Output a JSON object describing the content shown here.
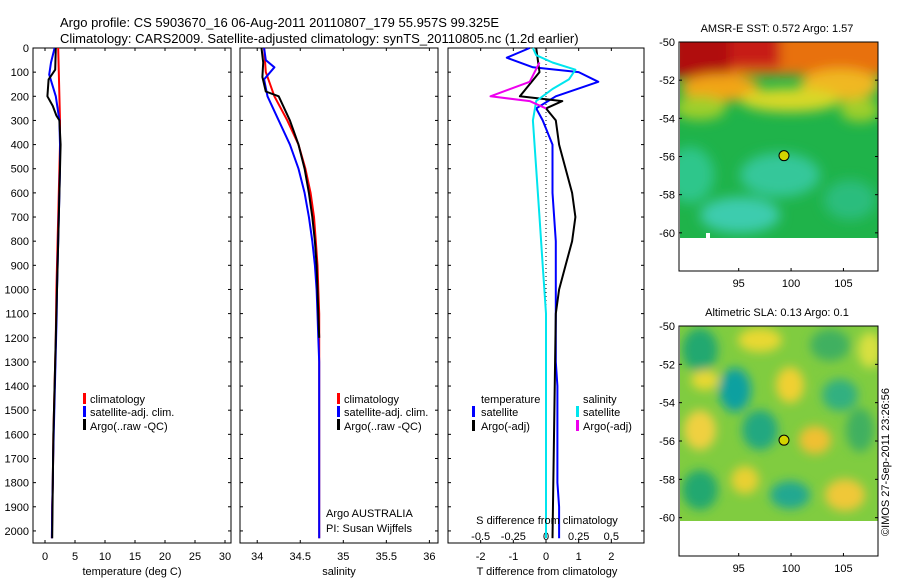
{
  "figure": {
    "title_line1": "Argo profile: CS 5903670_16 06-Aug-2011 20110807_179 55.957S 99.325E",
    "title_line2": "Climatology: CARS2009. Satellite-adjusted climatology: synTS_20110805.nc (1.2d earlier)",
    "credit": "©IMOS 27-Sep-2011 23:26:56"
  },
  "colors": {
    "climatology": "#ff0000",
    "satellite_adj": "#0000ff",
    "argo": "#000000",
    "satellite_cyan": "#00e5ee",
    "argo_adj_magenta": "#ee00ee"
  },
  "chart_data": [
    {
      "id": "temperature",
      "type": "line",
      "xlabel": "temperature (deg C)",
      "xlim": [
        -2,
        31
      ],
      "xticks": [
        0,
        5,
        10,
        15,
        20,
        25,
        30
      ],
      "xtick_labels": [
        "0",
        "5",
        "10",
        "15",
        "20",
        "25",
        "30"
      ],
      "ylim": [
        0,
        2050
      ],
      "yticks": [
        0,
        100,
        200,
        300,
        400,
        500,
        600,
        700,
        800,
        900,
        1000,
        1100,
        1200,
        1300,
        1400,
        1500,
        1600,
        1700,
        1800,
        1900,
        2000
      ],
      "ytick_labels": [
        "0",
        "100",
        "200",
        "300",
        "400",
        "500",
        "600",
        "700",
        "800",
        "900",
        "1000",
        "1100",
        "1200",
        "1300",
        "1400",
        "1500",
        "1600",
        "1700",
        "1800",
        "1900",
        "2000"
      ],
      "legend": [
        "climatology",
        "satellite-adj. clim.",
        "Argo(..raw -QC)"
      ],
      "legend_position": "lower-right",
      "series": [
        {
          "name": "climatology",
          "color": "red",
          "x": [
            2.2,
            2.3,
            2.4,
            2.5,
            2.5,
            2.4,
            2.3,
            2.2,
            2.1,
            2.0,
            1.9,
            1.85,
            1.8,
            1.7,
            1.6,
            1.5,
            1.4,
            1.35,
            1.3,
            1.2,
            1.15
          ],
          "y": [
            0,
            100,
            200,
            300,
            400,
            500,
            600,
            700,
            800,
            900,
            1000,
            1100,
            1200,
            1300,
            1400,
            1500,
            1600,
            1700,
            1800,
            1900,
            2030
          ]
        },
        {
          "name": "satellite-adj. clim.",
          "color": "blue",
          "x": [
            1.6,
            1.0,
            0.7,
            1.8,
            2.4,
            2.5,
            2.5,
            2.4,
            2.3,
            2.2,
            2.1,
            2.0,
            1.95,
            1.85,
            1.75,
            1.65,
            1.55,
            1.45,
            1.35,
            1.3,
            1.2,
            1.15
          ],
          "y": [
            0,
            60,
            110,
            200,
            300,
            400,
            500,
            600,
            700,
            800,
            900,
            1000,
            1100,
            1200,
            1300,
            1400,
            1500,
            1600,
            1700,
            1800,
            1900,
            2030
          ]
        },
        {
          "name": "Argo(..raw -QC)",
          "color": "black",
          "x": [
            1.8,
            1.7,
            0.6,
            0.4,
            1.3,
            1.9,
            2.4,
            2.6,
            2.5,
            2.4,
            2.3,
            2.2,
            2.1,
            2.0,
            1.9,
            1.8,
            1.7,
            1.6,
            1.5,
            1.4,
            1.3,
            1.2
          ],
          "y": [
            0,
            90,
            130,
            200,
            240,
            280,
            300,
            400,
            500,
            600,
            700,
            800,
            900,
            1000,
            1100,
            1200,
            1300,
            1400,
            1500,
            1600,
            1800,
            2030
          ]
        }
      ]
    },
    {
      "id": "salinity",
      "type": "line",
      "xlabel": "salinity",
      "xlim": [
        33.8,
        36.1
      ],
      "xticks": [
        34,
        34.5,
        35,
        35.5,
        36
      ],
      "xtick_labels": [
        "34",
        "34.5",
        "35",
        "35.5",
        "36"
      ],
      "ylim": [
        0,
        2050
      ],
      "legend": [
        "climatology",
        "satellite-adj. clim.",
        "Argo(..raw -QC)"
      ],
      "legend_position": "lower-right",
      "annotation_line1": "Argo AUSTRALIA",
      "annotation_line2": "PI: Susan Wijffels",
      "series": [
        {
          "name": "climatology",
          "color": "red",
          "x": [
            34.08,
            34.1,
            34.2,
            34.35,
            34.48,
            34.56,
            34.62,
            34.66,
            34.68,
            34.7,
            34.71,
            34.72,
            34.72,
            34.72,
            34.72,
            34.72,
            34.72,
            34.72,
            34.72,
            34.72,
            34.72,
            34.72
          ],
          "y": [
            0,
            100,
            200,
            300,
            400,
            500,
            600,
            700,
            800,
            900,
            1000,
            1100,
            1200,
            1300,
            1400,
            1500,
            1600,
            1700,
            1800,
            1900,
            2000,
            2030
          ]
        },
        {
          "name": "satellite-adj. clim.",
          "color": "blue",
          "x": [
            34.08,
            34.1,
            34.2,
            34.08,
            34.12,
            34.25,
            34.38,
            34.48,
            34.55,
            34.6,
            34.64,
            34.67,
            34.69,
            34.7,
            34.71,
            34.72,
            34.72,
            34.72,
            34.72,
            34.72,
            34.72,
            34.72
          ],
          "y": [
            0,
            50,
            80,
            130,
            200,
            300,
            400,
            500,
            600,
            700,
            800,
            900,
            1000,
            1100,
            1200,
            1300,
            1400,
            1500,
            1600,
            1800,
            2000,
            2030
          ]
        },
        {
          "name": "Argo(..raw -QC)",
          "color": "black",
          "x": [
            34.05,
            34.07,
            34.06,
            34.1,
            34.25,
            34.38,
            34.48,
            34.55,
            34.6,
            34.64,
            34.67,
            34.69,
            34.7,
            34.71,
            34.72
          ],
          "y": [
            0,
            60,
            120,
            180,
            200,
            300,
            400,
            500,
            600,
            700,
            800,
            900,
            1000,
            1100,
            1200
          ]
        }
      ]
    },
    {
      "id": "difference",
      "type": "line",
      "xlabel": "T difference from climatology",
      "xlabel_top": "S difference from climatology",
      "xlim": [
        -3.0,
        3.0
      ],
      "xticks": [
        -2,
        -1,
        0,
        1,
        2
      ],
      "xtick_labels": [
        "-2",
        "-1",
        "0",
        "1",
        "2"
      ],
      "s_ticks": [
        -0.5,
        -0.25,
        0,
        0.25,
        0.5
      ],
      "s_tick_labels": [
        "-0.5",
        "-0.25",
        "0",
        "0.25",
        "0.5"
      ],
      "ylim": [
        0,
        2050
      ],
      "legend_temperature_title": "temperature",
      "legend_salinity_title": "salinity",
      "legend_temperature": [
        "satellite",
        "Argo(-adj)"
      ],
      "legend_salinity": [
        "satellite",
        "Argo(-adj)"
      ],
      "series": [
        {
          "name": "temperature satellite",
          "color": "blue",
          "x": [
            -0.5,
            -1.2,
            -0.4,
            1.0,
            1.6,
            0.3,
            -0.3,
            -0.1,
            0.2,
            0.2,
            0.3,
            0.3,
            0.3,
            0.3,
            0.35,
            0.35,
            0.35,
            0.35,
            0.35,
            0.4,
            0.4
          ],
          "y": [
            0,
            40,
            80,
            100,
            140,
            200,
            250,
            300,
            400,
            600,
            800,
            1000,
            1200,
            1300,
            1400,
            1500,
            1600,
            1700,
            1800,
            1900,
            2030
          ]
        },
        {
          "name": "temperature Argo(-adj)",
          "color": "black",
          "x": [
            -0.3,
            -0.2,
            -0.8,
            0.5,
            0.0,
            0.3,
            0.4,
            0.6,
            0.8,
            0.9,
            0.8,
            0.6,
            0.4,
            0.3,
            0.2
          ],
          "y": [
            0,
            100,
            200,
            220,
            250,
            300,
            400,
            500,
            600,
            700,
            800,
            900,
            1000,
            1100,
            2030
          ]
        },
        {
          "name": "salinity satellite",
          "color": "cyan",
          "x": [
            -0.4,
            -0.3,
            0.2,
            0.9,
            0.7,
            0.2,
            -0.3,
            -0.4,
            -0.3,
            -0.2,
            -0.1,
            0.0,
            0.0,
            0.0,
            0.0
          ],
          "y": [
            0,
            30,
            60,
            90,
            130,
            170,
            220,
            300,
            500,
            700,
            900,
            1100,
            1400,
            1700,
            2030
          ]
        },
        {
          "name": "salinity Argo(-adj)",
          "color": "magenta",
          "x": [
            -0.2,
            -0.5,
            -1.7,
            -0.5,
            0.0
          ],
          "y": [
            60,
            140,
            200,
            220,
            250
          ]
        }
      ]
    },
    {
      "id": "sst_map",
      "type": "heatmap",
      "title": "AMSR-E SST: 0.572 Argo: 1.57",
      "xticks": [
        95,
        100,
        105
      ],
      "xtick_labels": [
        "95",
        "100",
        "105"
      ],
      "yticks": [
        -50,
        -52,
        -54,
        -56,
        -58,
        -60
      ],
      "ytick_labels": [
        "-50",
        "-52",
        "-54",
        "-56",
        "-58",
        "-60"
      ],
      "xlim": [
        89.3,
        108.3
      ],
      "ylim": [
        -62.0,
        -50.0
      ],
      "argo_position": {
        "lon": 99.325,
        "lat": -55.957
      }
    },
    {
      "id": "sla_map",
      "type": "heatmap",
      "title": "Altimetric SLA: 0.13 Argo: 0.1",
      "xticks": [
        95,
        100,
        105
      ],
      "xtick_labels": [
        "95",
        "100",
        "105"
      ],
      "yticks": [
        -50,
        -52,
        -54,
        -56,
        -58,
        -60
      ],
      "ytick_labels": [
        "-50",
        "-52",
        "-54",
        "-56",
        "-58",
        "-60"
      ],
      "xlim": [
        89.3,
        108.3
      ],
      "ylim": [
        -62.0,
        -50.0
      ],
      "argo_position": {
        "lon": 99.325,
        "lat": -55.957
      }
    }
  ]
}
